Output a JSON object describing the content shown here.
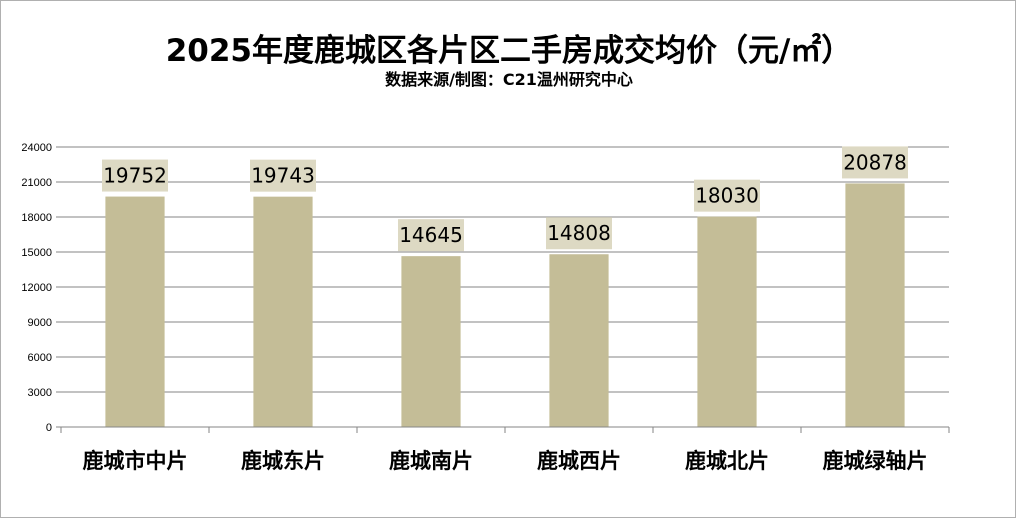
{
  "colors": {
    "bar": "#c4bd97",
    "label_box": "#ddd9c3",
    "grid": "#868686",
    "axis": "#868686"
  },
  "chart_data": {
    "type": "bar",
    "title": "2025年度鹿城区各片区二手房成交均价（元/㎡）",
    "subtitle": "数据来源/制图：C21温州研究中心",
    "categories": [
      "鹿城市中片",
      "鹿城东片",
      "鹿城南片",
      "鹿城西片",
      "鹿城北片",
      "鹿城绿轴片"
    ],
    "values": [
      19752,
      19743,
      14645,
      14808,
      18030,
      20878
    ],
    "ylim": [
      0,
      24000
    ],
    "yticks": [
      0,
      3000,
      6000,
      9000,
      12000,
      15000,
      18000,
      21000,
      24000
    ],
    "grid": true,
    "legend": "none",
    "data_labels": true
  }
}
